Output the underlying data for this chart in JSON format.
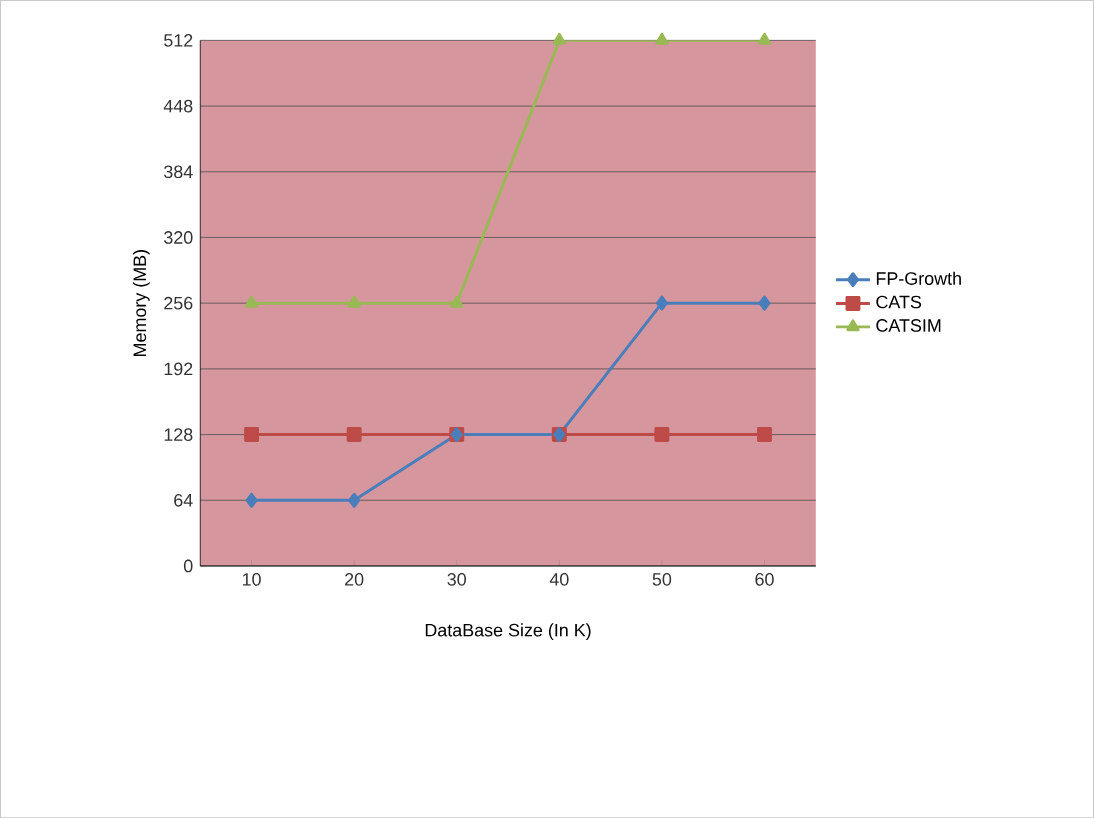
{
  "chart_data": {
    "type": "line",
    "xlabel": "DataBase Size (In K)",
    "ylabel": "Memory (MB)",
    "categories": [
      "10",
      "20",
      "30",
      "40",
      "50",
      "60"
    ],
    "series": [
      {
        "name": "FP-Growth",
        "color": "#4a7ebb",
        "marker": "diamond",
        "values": [
          64,
          64,
          128,
          128,
          256,
          256
        ]
      },
      {
        "name": "CATS",
        "color": "#be4b48",
        "marker": "square",
        "values": [
          128,
          128,
          128,
          128,
          128,
          128
        ]
      },
      {
        "name": "CATSIM",
        "color": "#98b954",
        "marker": "triangle",
        "values": [
          256,
          256,
          256,
          512,
          512,
          512
        ]
      }
    ],
    "ylim": [
      0,
      512
    ],
    "yticks": [
      0,
      64,
      128,
      192,
      256,
      320,
      384,
      448,
      512
    ],
    "grid": "y",
    "legend": "right"
  }
}
